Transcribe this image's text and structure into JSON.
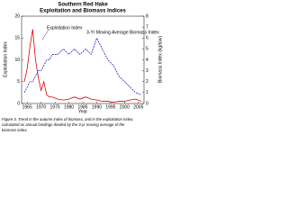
{
  "chart_data": {
    "type": "line",
    "title": "Southern Red Hake",
    "subtitle": "Exploitation and Biomass Indices",
    "x_label": "Year",
    "y_label": "Exploitation Index",
    "y2_label": "Biomass Index (kg/tow)",
    "annotations": [
      "Exploitation Index",
      "3-Yr Moving Average Biomass Index"
    ],
    "caption": [
      "Figure 3. Trend in the autumn index of biomass, and in the exploitation index,",
      "calculated as annual landings divided by the 3-yr moving average of the",
      "biomass index."
    ],
    "x": [
      1964,
      1965,
      1966,
      1967,
      1968,
      1969,
      1970,
      1971,
      1972,
      1973,
      1974,
      1976,
      1978,
      1980,
      1982,
      1984,
      1986,
      1988,
      1990,
      1992,
      1994,
      1996,
      1998,
      2000,
      2002,
      2004,
      2006
    ],
    "series": [
      {
        "name": "Exploitation Index",
        "color": "#e00000",
        "values": [
          5,
          8,
          13,
          17,
          10,
          6,
          3,
          5,
          2,
          1.5,
          1.5,
          1,
          0.8,
          1,
          1.5,
          1,
          1.5,
          1,
          0.8,
          0.5,
          0.5,
          0.3,
          0.5,
          0.5,
          0.8,
          1,
          0.5
        ]
      },
      {
        "name": "3-Yr Moving Average Biomass Index",
        "color": "#2020d0",
        "axis": "y2",
        "dash": true,
        "values": [
          1,
          1.5,
          2,
          2,
          2.5,
          3,
          3,
          3.5,
          4,
          4,
          4.5,
          4.5,
          5,
          4.5,
          5,
          4.5,
          5,
          4.5,
          6,
          5,
          4,
          3.5,
          2.5,
          2,
          1.5,
          1,
          0.8
        ]
      }
    ],
    "xlim": [
      1963,
      2007
    ],
    "xticks": [
      1965,
      1970,
      1975,
      1980,
      1985,
      1990,
      1995,
      2000,
      2005
    ],
    "ylim": [
      0,
      20
    ],
    "yticks": [
      0,
      5,
      10,
      15,
      20
    ],
    "y2lim": [
      0,
      8
    ],
    "y2ticks": [
      0,
      1,
      2,
      3,
      4,
      5,
      6,
      7,
      8
    ]
  }
}
